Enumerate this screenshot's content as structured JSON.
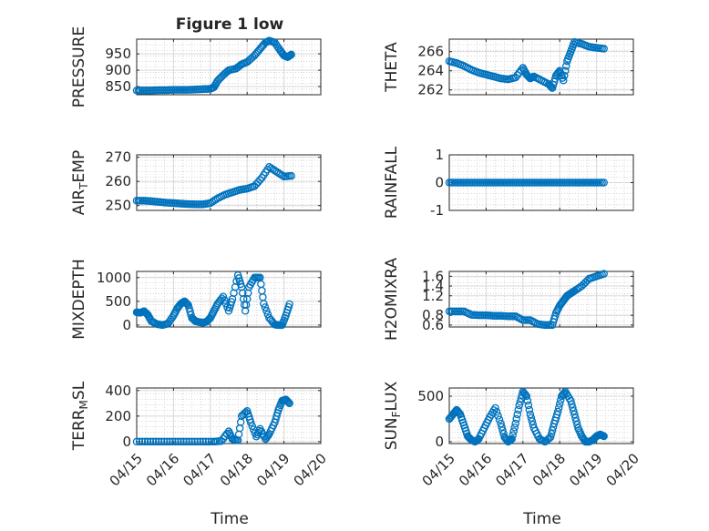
{
  "figure": {
    "title": "Figure 1 low"
  },
  "colors": {
    "marker": "#0072BD",
    "axis": "#262626",
    "grid": "#bfbfbf"
  },
  "chart_data": [
    {
      "type": "scatter",
      "ylabel": "PRESSURE",
      "xlabel": "",
      "xlim": [
        0,
        5
      ],
      "ylim": [
        825,
        995
      ],
      "yticks": [
        850,
        900,
        950
      ],
      "ytick_labels": [
        "850",
        "900",
        "950"
      ],
      "xtick_labels": [],
      "grid": true,
      "x": [
        0,
        0.2,
        0.4,
        0.6,
        0.8,
        1.0,
        1.2,
        1.4,
        1.6,
        1.8,
        2.0,
        2.1,
        2.2,
        2.35,
        2.5,
        2.7,
        2.85,
        3.0,
        3.2,
        3.35,
        3.5,
        3.6,
        3.75,
        3.9,
        4.0,
        4.1,
        4.2
      ],
      "y": [
        838,
        838,
        838,
        839,
        839,
        840,
        840,
        840,
        841,
        842,
        843,
        848,
        868,
        885,
        900,
        905,
        918,
        925,
        945,
        965,
        985,
        990,
        985,
        960,
        945,
        940,
        948
      ]
    },
    {
      "type": "scatter",
      "ylabel": "THETA",
      "xlabel": "",
      "xlim": [
        0,
        5
      ],
      "ylim": [
        261.5,
        267.3
      ],
      "yticks": [
        262,
        264,
        266
      ],
      "ytick_labels": [
        "262",
        "264",
        "266"
      ],
      "xtick_labels": [],
      "grid": true,
      "x": [
        0,
        0.2,
        0.4,
        0.6,
        0.8,
        1.0,
        1.2,
        1.4,
        1.6,
        1.8,
        2.0,
        2.1,
        2.2,
        2.3,
        2.5,
        2.7,
        2.8,
        2.9,
        3.0,
        3.1,
        3.2,
        3.3,
        3.4,
        3.6,
        3.8,
        4.0,
        4.2
      ],
      "y": [
        265,
        264.8,
        264.5,
        264.1,
        263.8,
        263.6,
        263.4,
        263.2,
        263.1,
        263.3,
        264.3,
        263.6,
        263.2,
        263.4,
        263.0,
        262.6,
        262.2,
        263.5,
        264,
        263,
        265,
        266,
        267,
        266.8,
        266.5,
        266.4,
        266.3
      ]
    },
    {
      "type": "scatter",
      "ylabel": "AIR_TEMP",
      "xlabel": "",
      "xlim": [
        0,
        5
      ],
      "ylim": [
        248,
        271
      ],
      "yticks": [
        250,
        260,
        270
      ],
      "ytick_labels": [
        "250",
        "260",
        "270"
      ],
      "xtick_labels": [],
      "grid": true,
      "x": [
        0,
        0.2,
        0.4,
        0.6,
        0.8,
        1.0,
        1.2,
        1.4,
        1.6,
        1.8,
        2.0,
        2.2,
        2.4,
        2.6,
        2.8,
        3.0,
        3.2,
        3.4,
        3.6,
        3.8,
        4.0,
        4.2
      ],
      "y": [
        252,
        252,
        251.8,
        251.5,
        251.2,
        251,
        250.8,
        250.6,
        250.5,
        250.5,
        251,
        253,
        254.5,
        255.5,
        256.5,
        257,
        258,
        261.5,
        266,
        264,
        262,
        262.3
      ]
    },
    {
      "type": "scatter",
      "ylabel": "RAINFALL",
      "xlabel": "",
      "xlim": [
        0,
        5
      ],
      "ylim": [
        -1,
        1
      ],
      "yticks": [
        -1,
        0,
        1
      ],
      "ytick_labels": [
        "-1",
        "0",
        "1"
      ],
      "xtick_labels": [],
      "grid": true,
      "x": [
        0,
        0.2,
        0.4,
        0.6,
        0.8,
        1.0,
        1.2,
        1.4,
        1.6,
        1.8,
        2.0,
        2.2,
        2.4,
        2.6,
        2.8,
        3.0,
        3.2,
        3.4,
        3.6,
        3.8,
        4.0,
        4.2
      ],
      "y": [
        0,
        0,
        0,
        0,
        0,
        0,
        0,
        0,
        0,
        0,
        0,
        0,
        0,
        0,
        0,
        0,
        0,
        0,
        0,
        0,
        0,
        0
      ]
    },
    {
      "type": "scatter",
      "ylabel": "MIXDEPTH",
      "xlabel": "",
      "xlim": [
        0,
        5
      ],
      "ylim": [
        -40,
        1130
      ],
      "yticks": [
        0,
        500,
        1000
      ],
      "ytick_labels": [
        "0",
        "500",
        "1000"
      ],
      "xtick_labels": [],
      "grid": true,
      "x": [
        0,
        0.1,
        0.2,
        0.3,
        0.4,
        0.55,
        0.7,
        0.85,
        1.0,
        1.1,
        1.2,
        1.3,
        1.4,
        1.5,
        1.6,
        1.7,
        1.8,
        1.9,
        2.0,
        2.1,
        2.2,
        2.35,
        2.5,
        2.6,
        2.75,
        2.85,
        2.95,
        3.05,
        3.2,
        3.35,
        3.45,
        3.6,
        3.75,
        3.85,
        3.95,
        4.05,
        4.15
      ],
      "y": [
        270,
        260,
        290,
        220,
        80,
        20,
        0,
        30,
        200,
        350,
        450,
        500,
        420,
        150,
        80,
        60,
        50,
        70,
        150,
        300,
        450,
        600,
        300,
        550,
        1050,
        800,
        300,
        800,
        1000,
        1000,
        450,
        150,
        10,
        0,
        0,
        200,
        440
      ]
    },
    {
      "type": "scatter",
      "ylabel": "H2OMIXRA",
      "xlabel": "",
      "xlim": [
        0,
        5
      ],
      "ylim": [
        0.56,
        1.7
      ],
      "yticks": [
        0.6,
        0.8,
        1.2,
        1.4,
        1.6
      ],
      "ytick_labels": [
        "0.6",
        "0.8",
        "1.2",
        "1.4",
        "1.6"
      ],
      "xtick_labels": [],
      "grid": true,
      "x": [
        0,
        0.2,
        0.4,
        0.6,
        0.8,
        1.0,
        1.2,
        1.4,
        1.6,
        1.8,
        2.0,
        2.2,
        2.4,
        2.6,
        2.8,
        2.9,
        3.0,
        3.1,
        3.2,
        3.3,
        3.4,
        3.6,
        3.8,
        4.0,
        4.2
      ],
      "y": [
        0.88,
        0.88,
        0.88,
        0.81,
        0.8,
        0.8,
        0.79,
        0.79,
        0.78,
        0.78,
        0.7,
        0.7,
        0.62,
        0.6,
        0.6,
        0.85,
        1.0,
        1.1,
        1.2,
        1.25,
        1.3,
        1.4,
        1.55,
        1.6,
        1.65
      ]
    },
    {
      "type": "scatter",
      "ylabel": "TERR_MSL",
      "xlabel": "",
      "xlim": [
        0,
        5
      ],
      "ylim": [
        -15,
        420
      ],
      "yticks": [
        0,
        200,
        400
      ],
      "ytick_labels": [
        "0",
        "200",
        "400"
      ],
      "xtick_labels": [
        "04/15",
        "04/16",
        "04/17",
        "04/18",
        "04/19",
        "04/20"
      ],
      "grid": true,
      "x": [
        0,
        0.3,
        0.6,
        0.9,
        1.2,
        1.5,
        1.8,
        2.1,
        2.3,
        2.5,
        2.6,
        2.75,
        2.85,
        3.0,
        3.1,
        3.25,
        3.35,
        3.5,
        3.6,
        3.75,
        3.85,
        3.95,
        4.05,
        4.15
      ],
      "y": [
        0,
        0,
        0,
        0,
        0,
        0,
        0,
        0,
        5,
        80,
        20,
        10,
        200,
        240,
        150,
        40,
        100,
        20,
        60,
        150,
        250,
        320,
        330,
        300
      ]
    },
    {
      "type": "scatter",
      "ylabel": "SUN_FLUX",
      "xlabel": "",
      "xlim": [
        0,
        5
      ],
      "ylim": [
        -20,
        590
      ],
      "yticks": [
        0,
        500
      ],
      "ytick_labels": [
        "0",
        "500"
      ],
      "xtick_labels": [
        "04/15",
        "04/16",
        "04/17",
        "04/18",
        "04/19",
        "04/20"
      ],
      "grid": true,
      "x": [
        0,
        0.1,
        0.2,
        0.3,
        0.4,
        0.5,
        0.6,
        0.7,
        0.8,
        0.95,
        1.1,
        1.25,
        1.4,
        1.5,
        1.6,
        1.7,
        1.8,
        1.9,
        2.0,
        2.1,
        2.2,
        2.3,
        2.45,
        2.6,
        2.75,
        2.85,
        2.95,
        3.05,
        3.15,
        3.3,
        3.4,
        3.5,
        3.6,
        3.7,
        3.8,
        3.9,
        4.0,
        4.1,
        4.2
      ],
      "y": [
        250,
        300,
        350,
        300,
        180,
        60,
        20,
        0,
        30,
        150,
        270,
        370,
        200,
        50,
        0,
        30,
        200,
        400,
        550,
        500,
        300,
        150,
        30,
        0,
        50,
        200,
        330,
        500,
        550,
        450,
        300,
        150,
        60,
        0,
        0,
        20,
        60,
        80,
        60
      ]
    }
  ],
  "time_axis": {
    "label": "Time"
  }
}
